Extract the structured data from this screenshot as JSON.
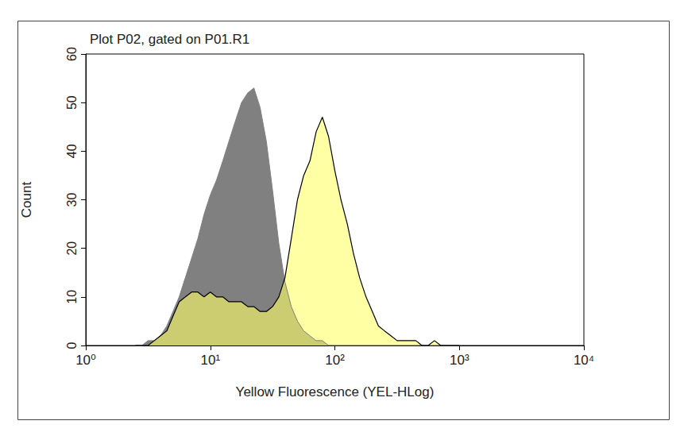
{
  "chart_data": {
    "type": "area",
    "title": "Plot P02, gated on P01.R1",
    "x_label": "Yellow Fluorescence (YEL-HLog)",
    "y_label": "Count",
    "log": "x",
    "grid": false,
    "x": [
      2.51,
      2.82,
      3.16,
      3.55,
      3.98,
      4.47,
      5.01,
      5.62,
      6.31,
      7.08,
      7.94,
      8.91,
      10,
      11.2,
      12.6,
      14.1,
      15.8,
      17.8,
      20,
      22.4,
      25.1,
      28.2,
      31.6,
      35.5,
      39.8,
      44.7,
      50.1,
      56.2,
      63.1,
      70.8,
      79.4,
      89.1,
      100,
      112,
      126,
      141,
      158,
      178,
      200,
      224,
      251,
      282,
      316,
      355,
      398,
      447,
      501,
      562,
      631,
      708,
      794,
      891,
      1000
    ],
    "series": [
      {
        "color": "#808080",
        "values": [
          0,
          0,
          1,
          1,
          2,
          4,
          7,
          10,
          14,
          18,
          22,
          27,
          31,
          34,
          38,
          42,
          46,
          50,
          52,
          53,
          49,
          42,
          32,
          21,
          13,
          8,
          5,
          3,
          2,
          1,
          1,
          0,
          0,
          0,
          0,
          0,
          0,
          0,
          0,
          0,
          0,
          0,
          0,
          0,
          0,
          0,
          0,
          0,
          0,
          0,
          0,
          0,
          0
        ]
      },
      {
        "color": "#ffff66",
        "line_style": "solid",
        "values": [
          0,
          0,
          0,
          1,
          2,
          3,
          6,
          9,
          10,
          11,
          11,
          10,
          11,
          10,
          10,
          9,
          9,
          9,
          8,
          8,
          7,
          7,
          8,
          10,
          14,
          22,
          30,
          35,
          38,
          44,
          47,
          43,
          36,
          30,
          25,
          19,
          14,
          10,
          7,
          4,
          3,
          2,
          1,
          1,
          1,
          1,
          0,
          0,
          1,
          0,
          0,
          0,
          0
        ]
      }
    ],
    "xlim": [
      1,
      10000
    ],
    "xticks": [
      {
        "value": 1,
        "label": "10⁰"
      },
      {
        "value": 10,
        "label": "10¹"
      },
      {
        "value": 100,
        "label": "10²"
      },
      {
        "value": 1000,
        "label": "10³"
      },
      {
        "value": 10000,
        "label": "10⁴"
      }
    ],
    "ylim": [
      0,
      60
    ],
    "yticks": [
      0,
      10,
      20,
      30,
      40,
      50,
      60
    ]
  }
}
